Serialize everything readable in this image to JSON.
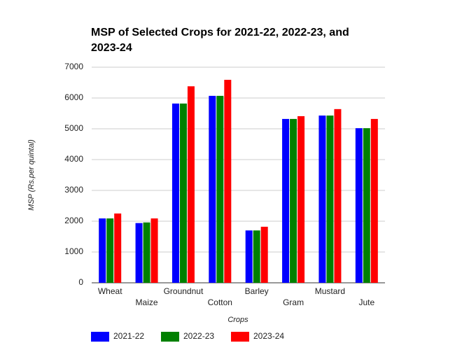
{
  "chart_data": {
    "type": "bar",
    "title": "MSP of Selected Crops for 2021-22, 2022-23, and 2023-24",
    "x_label": "Crops",
    "y_label": "MSP (Rs.per quintal)",
    "categories": [
      "Wheat",
      "Maize",
      "Groundnut",
      "Cotton",
      "Barley",
      "Gram",
      "Mustard",
      "Jute"
    ],
    "series": [
      {
        "name": "2021-22",
        "color": "#0000ff",
        "values": [
          2090,
          1940,
          5820,
          6070,
          1700,
          5320,
          5430,
          5020
        ]
      },
      {
        "name": "2022-23",
        "color": "#008000",
        "values": [
          2090,
          1960,
          5820,
          6070,
          1700,
          5320,
          5430,
          5020
        ]
      },
      {
        "name": "2023-24",
        "color": "#ff0000",
        "values": [
          2250,
          2090,
          6380,
          6590,
          1820,
          5410,
          5640,
          5320
        ]
      }
    ],
    "ylim": [
      0,
      7000
    ],
    "yticks": [
      0,
      1000,
      2000,
      3000,
      4000,
      5000,
      6000,
      7000
    ],
    "grid": true,
    "legend": "bottom"
  }
}
